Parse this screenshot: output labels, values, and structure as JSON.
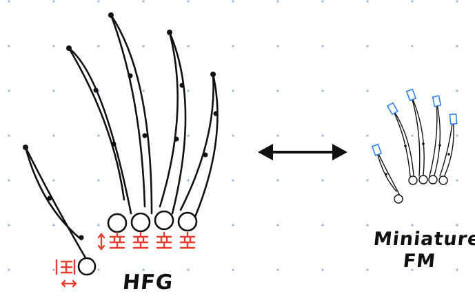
{
  "left_figure": {
    "label": "HFG",
    "color_ink": "#111111",
    "color_actuator": "#e63b2e"
  },
  "right_figure": {
    "label_line1": "Miniature",
    "label_line2": "FM",
    "color_marker": "#2f80ed"
  },
  "connector": {
    "icon": "double-headed-arrow"
  },
  "background": {
    "dot_color": "#9db8d6"
  }
}
